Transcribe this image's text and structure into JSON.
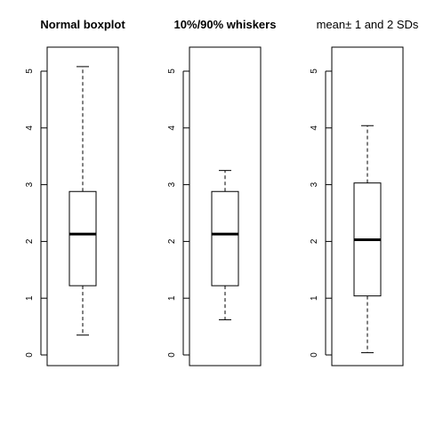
{
  "chart_data": [
    {
      "type": "boxplot",
      "title": "Normal boxplot",
      "ylim": [
        0,
        5
      ],
      "yticks": [
        "0",
        "1",
        "2",
        "3",
        "4",
        "5"
      ],
      "box": {
        "whisker_low": 0.35,
        "q1": 1.22,
        "median": 2.13,
        "q3": 2.88,
        "whisker_high": 5.08
      }
    },
    {
      "type": "boxplot",
      "title": "10%/90% whiskers",
      "ylim": [
        0,
        5
      ],
      "yticks": [
        "0",
        "1",
        "2",
        "3",
        "4",
        "5"
      ],
      "box": {
        "whisker_low": 0.62,
        "q1": 1.22,
        "median": 2.13,
        "q3": 2.88,
        "whisker_high": 3.25
      }
    },
    {
      "type": "boxplot",
      "title": "mean± 1 and 2 SDs",
      "ylim": [
        0,
        5
      ],
      "yticks": [
        "0",
        "1",
        "2",
        "3",
        "4",
        "5"
      ],
      "box": {
        "whisker_low": 0.04,
        "q1": 1.04,
        "median": 2.03,
        "q3": 3.03,
        "whisker_high": 4.04
      }
    }
  ]
}
